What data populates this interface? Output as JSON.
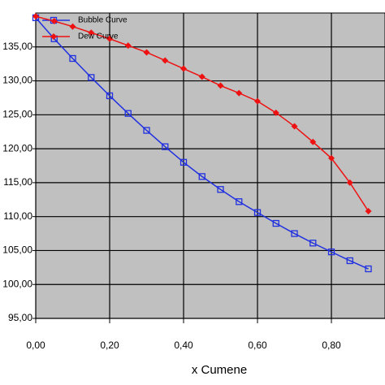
{
  "chart_data": {
    "type": "line",
    "x_label": "x Cumene",
    "x": [
      0,
      0.05,
      0.1,
      0.15,
      0.2,
      0.25,
      0.3,
      0.35,
      0.4,
      0.45,
      0.5,
      0.55,
      0.6,
      0.65,
      0.7,
      0.75,
      0.8,
      0.85,
      0.9
    ],
    "series": [
      {
        "name": "Bubble Curve",
        "color": "#2030e0",
        "marker": "square",
        "values": [
          139.3,
          136.2,
          133.3,
          130.5,
          127.8,
          125.2,
          122.7,
          120.3,
          118.0,
          115.9,
          114.0,
          112.2,
          110.6,
          109.0,
          107.5,
          106.1,
          104.8,
          103.5,
          102.3
        ]
      },
      {
        "name": "Dew Curve",
        "color": "#ee1111",
        "marker": "diamond",
        "values": [
          139.5,
          138.8,
          138.0,
          137.1,
          136.2,
          135.2,
          134.2,
          133.0,
          131.8,
          130.6,
          129.3,
          128.2,
          127.0,
          125.3,
          123.3,
          121.0,
          118.6,
          115.0,
          110.8
        ]
      }
    ],
    "xlim": [
      0,
      0.945
    ],
    "ylim": [
      95,
      140
    ],
    "xticks": [
      {
        "value": 0,
        "label": "0,00"
      },
      {
        "value": 0.2,
        "label": "0,20"
      },
      {
        "value": 0.4,
        "label": "0,40"
      },
      {
        "value": 0.6,
        "label": "0,60"
      },
      {
        "value": 0.8,
        "label": "0,80"
      }
    ],
    "yticks": [
      {
        "value": 95,
        "label": "95,00"
      },
      {
        "value": 100,
        "label": "100,00"
      },
      {
        "value": 105,
        "label": "105,00"
      },
      {
        "value": 110,
        "label": "110,00"
      },
      {
        "value": 115,
        "label": "115,00"
      },
      {
        "value": 120,
        "label": "120,00"
      },
      {
        "value": 125,
        "label": "125,00"
      },
      {
        "value": 130,
        "label": "130,00"
      },
      {
        "value": 135,
        "label": "135,00"
      }
    ],
    "grid": true,
    "legend": "top-left",
    "plot_background": "#c0c0c0"
  }
}
